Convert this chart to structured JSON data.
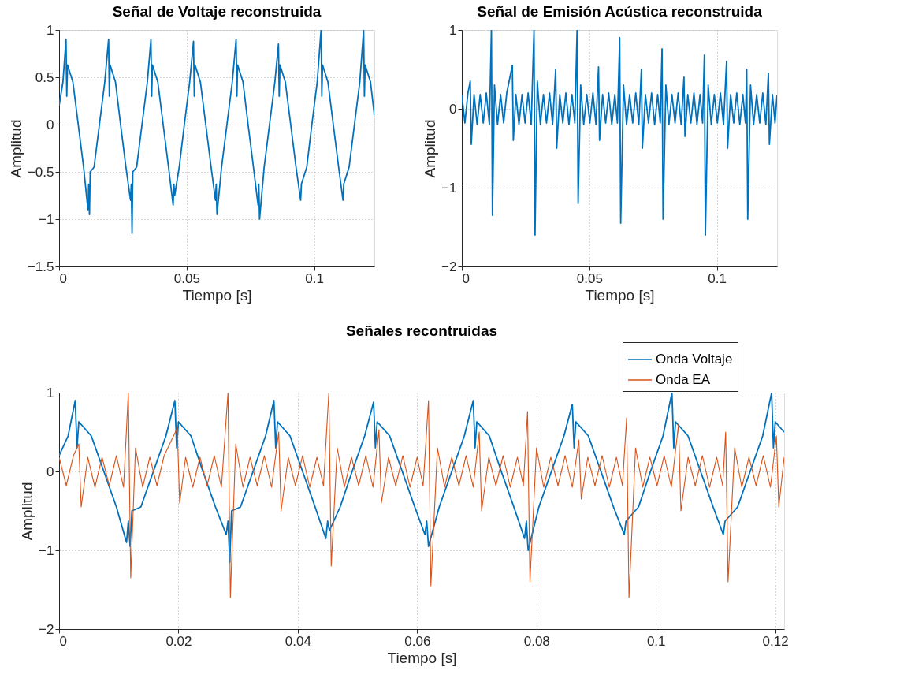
{
  "chart_data": [
    {
      "type": "line",
      "title": "Señal de Voltaje reconstruida",
      "xlabel": "Tiempo [s]",
      "ylabel": "Amplitud",
      "xlim": [
        0,
        0.1236
      ],
      "ylim": [
        -1.5,
        1
      ],
      "xticks": [
        0,
        0.05,
        0.1
      ],
      "yticks": [
        -1.5,
        -1,
        -0.5,
        0,
        0.5,
        1
      ],
      "grid": true,
      "series": [
        {
          "color": "#0072bd",
          "x": [
            0,
            0.0015,
            0.0027,
            0.003,
            0.0033,
            0.0054,
            0.0075,
            0.0096,
            0.0113,
            0.0116,
            0.0119,
            0.0122,
            0.0137,
            0.0158,
            0.0179,
            0.0194,
            0.0197,
            0.02,
            0.0221,
            0.0241,
            0.0262,
            0.028,
            0.0283,
            0.0286,
            0.0289,
            0.0304,
            0.0325,
            0.0346,
            0.036,
            0.0363,
            0.0366,
            0.0387,
            0.0408,
            0.0429,
            0.0447,
            0.045,
            0.0453,
            0.0471,
            0.0491,
            0.0512,
            0.0527,
            0.053,
            0.0533,
            0.0554,
            0.0575,
            0.0596,
            0.0613,
            0.0616,
            0.0619,
            0.0637,
            0.0658,
            0.0679,
            0.0694,
            0.0697,
            0.07,
            0.0721,
            0.0741,
            0.0762,
            0.078,
            0.0783,
            0.0786,
            0.0804,
            0.0825,
            0.0846,
            0.086,
            0.0863,
            0.0866,
            0.0887,
            0.0908,
            0.0929,
            0.0947,
            0.095,
            0.0971,
            0.0991,
            0.1012,
            0.1027,
            0.103,
            0.1033,
            0.1054,
            0.1075,
            0.1096,
            0.1113,
            0.1116,
            0.1137,
            0.1158,
            0.1179,
            0.1194,
            0.1197,
            0.12,
            0.1221,
            0.1236
          ],
          "values": [
            0.2,
            0.45,
            0.9,
            0.3,
            0.63,
            0.45,
            0,
            -0.45,
            -0.9,
            -0.63,
            -0.95,
            -0.5,
            -0.45,
            0,
            0.45,
            0.9,
            0.3,
            0.63,
            0.45,
            0,
            -0.45,
            -0.8,
            -0.63,
            -1.15,
            -0.5,
            -0.45,
            0,
            0.45,
            0.9,
            0.3,
            0.63,
            0.45,
            0,
            -0.45,
            -0.85,
            -0.63,
            -0.75,
            -0.45,
            0,
            0.45,
            0.88,
            0.3,
            0.63,
            0.45,
            0,
            -0.45,
            -0.8,
            -0.63,
            -0.95,
            -0.45,
            0,
            0.45,
            0.9,
            0.3,
            0.63,
            0.45,
            0,
            -0.45,
            -0.85,
            -0.63,
            -1.0,
            -0.45,
            0,
            0.45,
            0.85,
            0.3,
            0.63,
            0.45,
            0,
            -0.45,
            -0.8,
            -0.63,
            -0.45,
            0,
            0.45,
            1.0,
            0.3,
            0.63,
            0.45,
            0,
            -0.45,
            -0.8,
            -0.63,
            -0.45,
            0,
            0.45,
            1.0,
            0.3,
            0.63,
            0.45,
            0.1
          ]
        }
      ]
    },
    {
      "type": "line",
      "title": "Señal de Emisión Acústica reconstruida",
      "xlabel": "Tiempo [s]",
      "ylabel": "Amplitud",
      "xlim": [
        0,
        0.1236
      ],
      "ylim": [
        -2,
        1
      ],
      "xticks": [
        0,
        0.05,
        0.1
      ],
      "yticks": [
        -2,
        -1,
        0,
        1
      ],
      "grid": true,
      "series": [
        {
          "color": "#0072bd",
          "x": [
            0,
            0.0012,
            0.0024,
            0.0033,
            0.0037,
            0.0048,
            0.006,
            0.0072,
            0.0084,
            0.0096,
            0.0108,
            0.0116,
            0.012,
            0.0128,
            0.014,
            0.0152,
            0.0164,
            0.0176,
            0.0198,
            0.0202,
            0.0212,
            0.0224,
            0.0236,
            0.0248,
            0.026,
            0.0272,
            0.0283,
            0.0287,
            0.0296,
            0.0308,
            0.032,
            0.0332,
            0.0344,
            0.0356,
            0.0368,
            0.0372,
            0.0384,
            0.0396,
            0.0408,
            0.042,
            0.0432,
            0.0443,
            0.0452,
            0.0456,
            0.0466,
            0.0478,
            0.049,
            0.0502,
            0.0514,
            0.0526,
            0.0536,
            0.054,
            0.0552,
            0.0564,
            0.0576,
            0.0588,
            0.06,
            0.061,
            0.0619,
            0.0623,
            0.0634,
            0.0646,
            0.0658,
            0.067,
            0.0682,
            0.0694,
            0.0704,
            0.0708,
            0.072,
            0.0732,
            0.0744,
            0.0756,
            0.0768,
            0.0778,
            0.0785,
            0.0789,
            0.08,
            0.0812,
            0.0824,
            0.0836,
            0.0848,
            0.086,
            0.0871,
            0.0875,
            0.0886,
            0.0898,
            0.091,
            0.0922,
            0.0934,
            0.0944,
            0.0951,
            0.0955,
            0.0966,
            0.0978,
            0.099,
            0.1002,
            0.1014,
            0.1026,
            0.1038,
            0.1042,
            0.1054,
            0.1066,
            0.1078,
            0.109,
            0.1102,
            0.1112,
            0.1117,
            0.1121,
            0.1132,
            0.1144,
            0.1156,
            0.1168,
            0.118,
            0.1192,
            0.1202,
            0.1206,
            0.1218,
            0.1228,
            0.1236
          ],
          "values": [
            0.18,
            -0.18,
            0.2,
            0.35,
            -0.45,
            0.18,
            -0.2,
            0.18,
            -0.18,
            0.2,
            -0.2,
            1.0,
            -1.35,
            0.3,
            -0.2,
            0.18,
            -0.18,
            0.2,
            0.55,
            -0.4,
            0.18,
            -0.2,
            0.18,
            -0.18,
            0.2,
            -0.2,
            1.0,
            -1.6,
            0.35,
            -0.2,
            0.18,
            -0.18,
            0.2,
            -0.2,
            0.5,
            -0.5,
            0.18,
            -0.18,
            0.2,
            -0.2,
            0.18,
            -0.18,
            1.0,
            -1.2,
            0.3,
            -0.2,
            0.18,
            -0.18,
            0.2,
            -0.2,
            0.53,
            -0.4,
            0.18,
            -0.18,
            0.2,
            -0.2,
            0.18,
            -0.18,
            0.9,
            -1.45,
            0.3,
            -0.2,
            0.18,
            -0.18,
            0.2,
            -0.2,
            0.5,
            -0.5,
            0.18,
            -0.18,
            0.2,
            -0.2,
            0.18,
            -0.18,
            0.76,
            -1.4,
            0.3,
            -0.2,
            0.18,
            -0.18,
            0.2,
            -0.2,
            0.4,
            -0.35,
            0.18,
            -0.18,
            0.2,
            -0.2,
            0.18,
            -0.18,
            0.68,
            -1.6,
            0.3,
            -0.2,
            0.18,
            -0.18,
            0.2,
            -0.2,
            0.6,
            -0.5,
            0.18,
            -0.18,
            0.2,
            -0.2,
            0.18,
            -0.18,
            0.5,
            -1.4,
            0.3,
            -0.2,
            0.18,
            -0.18,
            0.2,
            -0.2,
            0.45,
            -0.45,
            0.18,
            -0.18,
            0.18
          ]
        }
      ]
    },
    {
      "type": "line",
      "title": "Señales recontruidas",
      "xlabel": "Tiempo [s]",
      "ylabel": "Amplitud",
      "xlim": [
        0,
        0.1215
      ],
      "ylim": [
        -2,
        1
      ],
      "xticks": [
        0,
        0.02,
        0.04,
        0.06,
        0.08,
        0.1,
        0.12
      ],
      "yticks": [
        -2,
        -1,
        0,
        1
      ],
      "grid": true,
      "legend": "top right",
      "series": [
        {
          "name": "Onda Voltaje",
          "color": "#0072bd",
          "x": [
            0,
            0.0015,
            0.0027,
            0.003,
            0.0033,
            0.0054,
            0.0075,
            0.0096,
            0.0113,
            0.0116,
            0.0119,
            0.0122,
            0.0137,
            0.0158,
            0.0179,
            0.0194,
            0.0197,
            0.02,
            0.0221,
            0.0241,
            0.0262,
            0.028,
            0.0283,
            0.0286,
            0.0289,
            0.0304,
            0.0325,
            0.0346,
            0.036,
            0.0363,
            0.0366,
            0.0387,
            0.0408,
            0.0429,
            0.0447,
            0.045,
            0.0453,
            0.0471,
            0.0491,
            0.0512,
            0.0527,
            0.053,
            0.0533,
            0.0554,
            0.0575,
            0.0596,
            0.0613,
            0.0616,
            0.0619,
            0.0637,
            0.0658,
            0.0679,
            0.0694,
            0.0697,
            0.07,
            0.0721,
            0.0741,
            0.0762,
            0.078,
            0.0783,
            0.0786,
            0.0804,
            0.0825,
            0.0846,
            0.086,
            0.0863,
            0.0866,
            0.0887,
            0.0908,
            0.0929,
            0.0947,
            0.095,
            0.0971,
            0.0991,
            0.1012,
            0.1027,
            0.103,
            0.1033,
            0.1054,
            0.1075,
            0.1096,
            0.1113,
            0.1116,
            0.1137,
            0.1158,
            0.1179,
            0.1194,
            0.1197,
            0.12,
            0.1215
          ],
          "values": [
            0.2,
            0.45,
            0.9,
            0.3,
            0.63,
            0.45,
            0,
            -0.45,
            -0.9,
            -0.63,
            -0.95,
            -0.5,
            -0.45,
            0,
            0.45,
            0.9,
            0.3,
            0.63,
            0.45,
            0,
            -0.45,
            -0.8,
            -0.63,
            -1.15,
            -0.5,
            -0.45,
            0,
            0.45,
            0.9,
            0.3,
            0.63,
            0.45,
            0,
            -0.45,
            -0.85,
            -0.63,
            -0.75,
            -0.45,
            0,
            0.45,
            0.88,
            0.3,
            0.63,
            0.45,
            0,
            -0.45,
            -0.8,
            -0.63,
            -0.95,
            -0.45,
            0,
            0.45,
            0.9,
            0.3,
            0.63,
            0.45,
            0,
            -0.45,
            -0.85,
            -0.63,
            -1.0,
            -0.45,
            0,
            0.45,
            0.85,
            0.3,
            0.63,
            0.45,
            0,
            -0.45,
            -0.8,
            -0.63,
            -0.45,
            0,
            0.45,
            1.0,
            0.3,
            0.63,
            0.45,
            0,
            -0.45,
            -0.8,
            -0.63,
            -0.45,
            0,
            0.45,
            1.0,
            0.3,
            0.63,
            0.5
          ]
        },
        {
          "name": "Onda EA",
          "color": "#d95319",
          "x": [
            0,
            0.0012,
            0.0024,
            0.0033,
            0.0037,
            0.0048,
            0.006,
            0.0072,
            0.0084,
            0.0096,
            0.0108,
            0.0116,
            0.012,
            0.0128,
            0.014,
            0.0152,
            0.0164,
            0.0176,
            0.0198,
            0.0202,
            0.0212,
            0.0224,
            0.0236,
            0.0248,
            0.026,
            0.0272,
            0.0283,
            0.0287,
            0.0296,
            0.0308,
            0.032,
            0.0332,
            0.0344,
            0.0356,
            0.0368,
            0.0372,
            0.0384,
            0.0396,
            0.0408,
            0.042,
            0.0432,
            0.0443,
            0.0452,
            0.0456,
            0.0466,
            0.0478,
            0.049,
            0.0502,
            0.0514,
            0.0526,
            0.0536,
            0.054,
            0.0552,
            0.0564,
            0.0576,
            0.0588,
            0.06,
            0.061,
            0.0619,
            0.0623,
            0.0634,
            0.0646,
            0.0658,
            0.067,
            0.0682,
            0.0694,
            0.0704,
            0.0708,
            0.072,
            0.0732,
            0.0744,
            0.0756,
            0.0768,
            0.0778,
            0.0785,
            0.0789,
            0.08,
            0.0812,
            0.0824,
            0.0836,
            0.0848,
            0.086,
            0.0871,
            0.0875,
            0.0886,
            0.0898,
            0.091,
            0.0922,
            0.0934,
            0.0944,
            0.0951,
            0.0955,
            0.0966,
            0.0978,
            0.099,
            0.1002,
            0.1014,
            0.1026,
            0.1038,
            0.1042,
            0.1054,
            0.1066,
            0.1078,
            0.109,
            0.1102,
            0.1112,
            0.1117,
            0.1121,
            0.1132,
            0.1144,
            0.1156,
            0.1168,
            0.118,
            0.1192,
            0.1202,
            0.1206,
            0.1215
          ],
          "values": [
            0.18,
            -0.18,
            0.2,
            0.35,
            -0.45,
            0.18,
            -0.2,
            0.18,
            -0.18,
            0.2,
            -0.2,
            1.0,
            -1.35,
            0.3,
            -0.2,
            0.18,
            -0.18,
            0.2,
            0.55,
            -0.4,
            0.18,
            -0.2,
            0.18,
            -0.18,
            0.2,
            -0.2,
            1.0,
            -1.6,
            0.35,
            -0.2,
            0.18,
            -0.18,
            0.2,
            -0.2,
            0.5,
            -0.5,
            0.18,
            -0.18,
            0.2,
            -0.2,
            0.18,
            -0.18,
            1.0,
            -1.2,
            0.3,
            -0.2,
            0.18,
            -0.18,
            0.2,
            -0.2,
            0.53,
            -0.4,
            0.18,
            -0.18,
            0.2,
            -0.2,
            0.18,
            -0.18,
            0.9,
            -1.45,
            0.3,
            -0.2,
            0.18,
            -0.18,
            0.2,
            -0.2,
            0.5,
            -0.5,
            0.18,
            -0.18,
            0.2,
            -0.2,
            0.18,
            -0.18,
            0.76,
            -1.4,
            0.3,
            -0.2,
            0.18,
            -0.18,
            0.2,
            -0.2,
            0.4,
            -0.35,
            0.18,
            -0.18,
            0.2,
            -0.2,
            0.18,
            -0.18,
            0.68,
            -1.6,
            0.3,
            -0.2,
            0.18,
            -0.18,
            0.2,
            -0.2,
            0.6,
            -0.5,
            0.18,
            -0.18,
            0.2,
            -0.2,
            0.18,
            -0.18,
            0.5,
            -1.4,
            0.3,
            -0.2,
            0.18,
            -0.18,
            0.2,
            -0.2,
            0.45,
            -0.45,
            0.18
          ]
        }
      ]
    }
  ]
}
